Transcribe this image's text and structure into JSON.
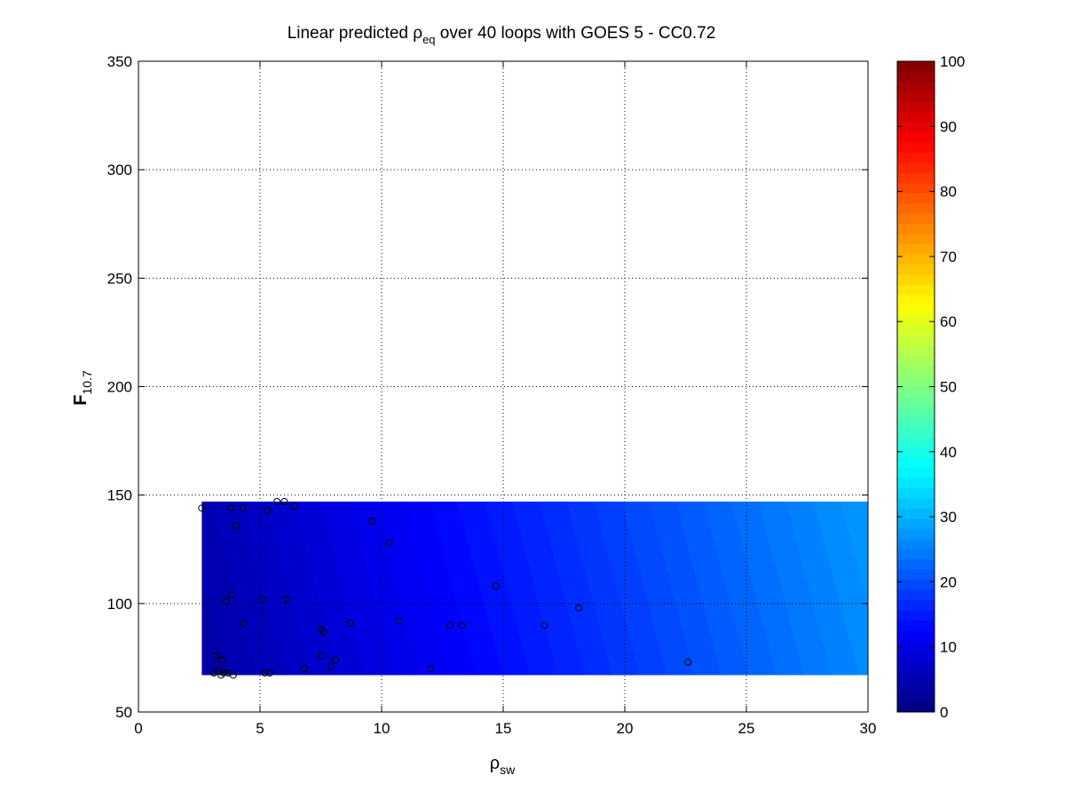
{
  "chart_data": {
    "type": "scatter",
    "title": {
      "main": "Linear predicted ",
      "symbol": "ρ",
      "subscript": "eq",
      "rest": " over 40 loops with GOES 5 - CC0.72"
    },
    "xlabel": {
      "symbol": "ρ",
      "subscript": "sw"
    },
    "ylabel": {
      "symbol": "F",
      "subscript": "10.7"
    },
    "xlim": [
      0,
      30
    ],
    "ylim": [
      50,
      350
    ],
    "xticks": [
      "0",
      "5",
      "10",
      "15",
      "20",
      "25",
      "30"
    ],
    "yticks": [
      "50",
      "100",
      "150",
      "200",
      "250",
      "300",
      "350"
    ],
    "grid": true,
    "grid_style": "dotted",
    "colormap": "jet",
    "color_limits": [
      0,
      100
    ],
    "colorbar_ticks": [
      "0",
      "10",
      "20",
      "30",
      "40",
      "50",
      "60",
      "70",
      "80",
      "90",
      "100"
    ],
    "prediction_surface": {
      "x_range": [
        2.6,
        30
      ],
      "y_range": [
        67,
        147
      ],
      "bands": 26,
      "value_at_min_corner": 4,
      "value_at_max_corner": 27
    },
    "points": [
      {
        "x": 2.6,
        "y": 144
      },
      {
        "x": 3.8,
        "y": 144
      },
      {
        "x": 4.3,
        "y": 144
      },
      {
        "x": 5.3,
        "y": 143
      },
      {
        "x": 5.7,
        "y": 147
      },
      {
        "x": 6.0,
        "y": 147
      },
      {
        "x": 6.4,
        "y": 145
      },
      {
        "x": 4.0,
        "y": 136
      },
      {
        "x": 9.6,
        "y": 138
      },
      {
        "x": 10.3,
        "y": 128
      },
      {
        "x": 3.8,
        "y": 104
      },
      {
        "x": 3.6,
        "y": 101
      },
      {
        "x": 5.1,
        "y": 102
      },
      {
        "x": 6.1,
        "y": 102
      },
      {
        "x": 4.3,
        "y": 91
      },
      {
        "x": 8.7,
        "y": 91
      },
      {
        "x": 10.7,
        "y": 92
      },
      {
        "x": 7.5,
        "y": 88
      },
      {
        "x": 12.8,
        "y": 90
      },
      {
        "x": 13.3,
        "y": 90
      },
      {
        "x": 14.7,
        "y": 108
      },
      {
        "x": 16.7,
        "y": 90
      },
      {
        "x": 18.1,
        "y": 98
      },
      {
        "x": 22.6,
        "y": 73
      },
      {
        "x": 3.2,
        "y": 76
      },
      {
        "x": 3.4,
        "y": 74
      },
      {
        "x": 7.5,
        "y": 76
      },
      {
        "x": 8.1,
        "y": 74
      },
      {
        "x": 7.9,
        "y": 71
      },
      {
        "x": 6.8,
        "y": 70
      },
      {
        "x": 3.3,
        "y": 69
      },
      {
        "x": 3.5,
        "y": 68
      },
      {
        "x": 3.4,
        "y": 67
      },
      {
        "x": 3.7,
        "y": 68
      },
      {
        "x": 3.9,
        "y": 67
      },
      {
        "x": 5.2,
        "y": 68
      },
      {
        "x": 5.4,
        "y": 68
      },
      {
        "x": 12.0,
        "y": 70
      },
      {
        "x": 3.1,
        "y": 68
      },
      {
        "x": 7.6,
        "y": 87
      }
    ]
  }
}
